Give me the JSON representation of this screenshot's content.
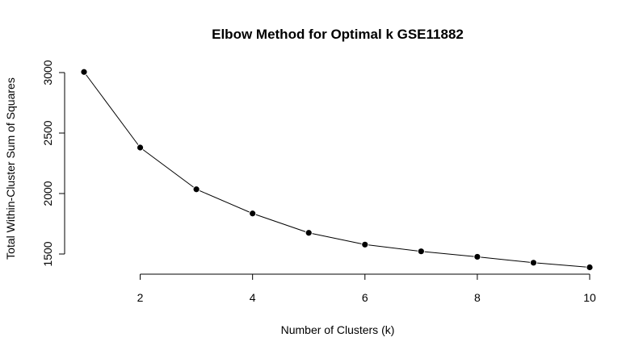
{
  "chart_data": {
    "type": "line",
    "title": "Elbow Method for Optimal k GSE11882",
    "xlabel": "Number of Clusters (k)",
    "ylabel": "Total Within-Cluster Sum of Squares",
    "x": [
      1,
      2,
      3,
      4,
      5,
      6,
      7,
      8,
      9,
      10
    ],
    "series": [
      {
        "values": [
          3005,
          2380,
          2035,
          1835,
          1675,
          1578,
          1522,
          1477,
          1428,
          1390
        ]
      }
    ],
    "xlim": [
      1,
      10
    ],
    "ylim": [
      1400,
      3000
    ],
    "x_ticks": [
      "2",
      "4",
      "6",
      "8",
      "10"
    ],
    "y_ticks": [
      "1500",
      "2000",
      "2500",
      "3000"
    ],
    "grid": false,
    "line_color": "#000000",
    "marker_color": "#000000"
  }
}
